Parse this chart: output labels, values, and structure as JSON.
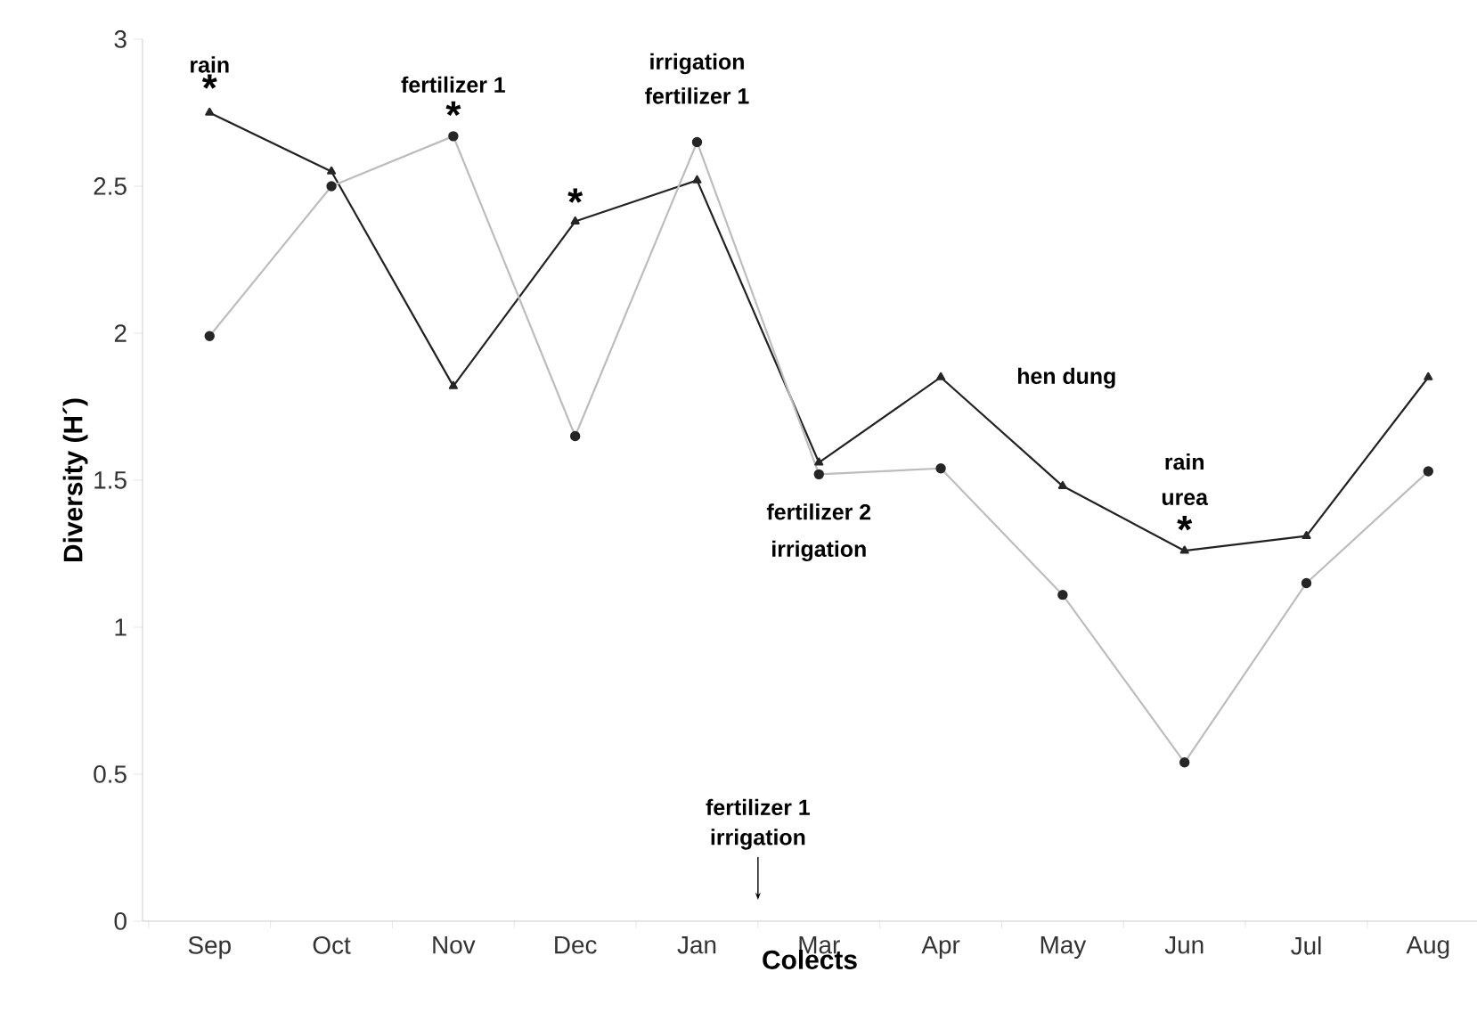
{
  "chart_data": {
    "type": "line",
    "xlabel": "Colects",
    "ylabel": "Diversity (H´)",
    "categories": [
      "Sep",
      "Oct",
      "Nov",
      "Dec",
      "Jan",
      "Mar",
      "Apr",
      "May",
      "Jun",
      "Jul",
      "Aug"
    ],
    "ylim": [
      0,
      3
    ],
    "yticks": [
      0,
      0.5,
      1,
      1.5,
      2,
      2.5,
      3
    ],
    "grid": false,
    "series": [
      {
        "color": "#222222",
        "marker": "triangle",
        "values": [
          2.75,
          2.55,
          1.82,
          2.38,
          2.52,
          1.56,
          1.85,
          1.48,
          1.26,
          1.31,
          1.85
        ]
      },
      {
        "color": "#bdbdbd",
        "marker": "circle",
        "values": [
          1.99,
          2.5,
          2.67,
          1.65,
          2.65,
          1.52,
          1.54,
          1.11,
          0.54,
          1.15,
          1.53
        ]
      }
    ],
    "annotations": [
      {
        "text": "rain",
        "x": "Sep",
        "y": 2.75
      },
      {
        "text": "*",
        "x": "Sep",
        "y": 2.75
      },
      {
        "text": "fertilizer 1",
        "x": "Nov",
        "y": 2.67
      },
      {
        "text": "*",
        "x": "Nov",
        "y": 2.67
      },
      {
        "text": "*",
        "x": "Dec",
        "y": 2.38
      },
      {
        "text": "fertilizer 1",
        "x": "Jan",
        "y": 2.65
      },
      "irrigation",
      {
        "text": "fertilizer 2",
        "x": "Mar",
        "y": 1.52
      },
      {
        "text": "irrigation",
        "x": "Mar",
        "y": 1.52
      },
      "hen dung",
      {
        "text": "urea",
        "x": "Jun",
        "y": 1.26
      },
      "rain",
      {
        "text": "*",
        "x": "Jun",
        "y": 1.26
      },
      "fertilizer 1",
      "irrigation"
    ]
  }
}
